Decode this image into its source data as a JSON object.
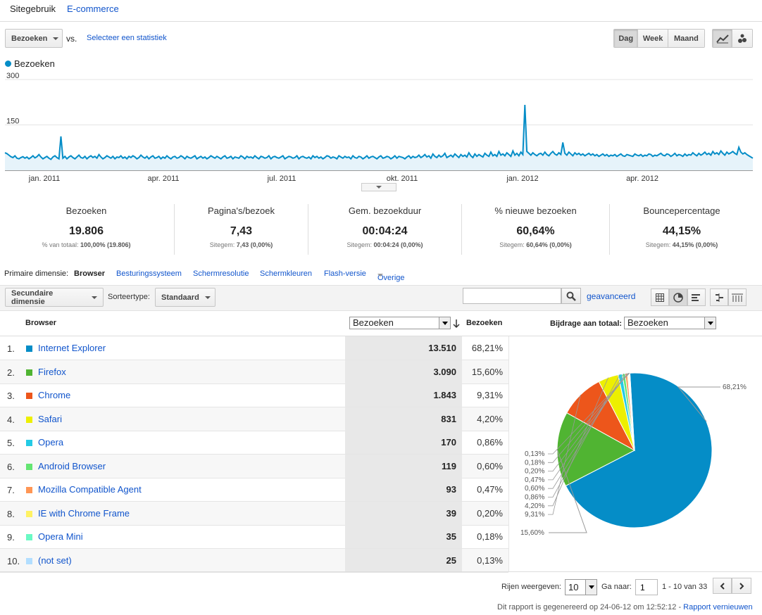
{
  "tabs": [
    "Sitegebruik",
    "E-commerce"
  ],
  "controls": {
    "metric_select": "Bezoeken",
    "vs": "vs.",
    "select_stat": "Selecteer een statistiek",
    "period_buttons": [
      "Dag",
      "Week",
      "Maand"
    ],
    "active_period": "Dag"
  },
  "chart_data": {
    "type": "line",
    "legend": "Bezoeken",
    "y_ticks": [
      "300",
      "150"
    ],
    "ylim": [
      0,
      300
    ],
    "x_tick_labels": [
      "jan. 2011",
      "apr. 2011",
      "jul. 2011",
      "okt. 2011",
      "jan. 2012",
      "apr. 2012"
    ],
    "series": [
      {
        "name": "Bezoeken",
        "color": "#058dc7",
        "values": [
          58,
          55,
          50,
          45,
          42,
          48,
          40,
          38,
          42,
          45,
          40,
          44,
          38,
          42,
          48,
          41,
          45,
          52,
          44,
          38,
          42,
          46,
          40,
          36,
          44,
          48,
          42,
          38,
          112,
          40,
          46,
          38,
          44,
          48,
          42,
          38,
          44,
          50,
          42,
          40,
          46,
          38,
          44,
          48,
          42,
          46,
          40,
          52,
          44,
          38,
          42,
          48,
          44,
          40,
          46,
          38,
          44,
          42,
          48,
          40,
          44,
          38,
          46,
          42,
          48,
          44,
          38,
          42,
          50,
          44,
          40,
          46,
          38,
          44,
          48,
          40,
          42,
          46,
          38,
          44,
          40,
          48,
          42,
          38,
          44,
          46,
          40,
          42,
          48,
          44,
          38,
          46,
          42,
          40,
          44,
          48,
          38,
          42,
          46,
          40,
          44,
          38,
          42,
          48,
          44,
          40,
          46,
          42,
          38,
          44,
          48,
          40,
          42,
          46,
          38,
          44,
          42,
          40,
          48,
          44,
          38,
          46,
          42,
          44,
          40,
          48,
          42,
          38,
          46,
          44,
          40,
          42,
          48,
          38,
          44,
          46,
          42,
          40,
          44,
          48,
          38,
          42,
          46,
          44,
          40,
          42,
          48,
          38,
          44,
          46,
          42,
          40,
          44,
          38,
          48,
          42,
          46,
          40,
          44,
          38,
          42,
          48,
          46,
          40,
          44,
          42,
          38,
          48,
          44,
          40,
          46,
          42,
          44,
          38,
          48,
          42,
          40,
          46,
          44,
          38,
          42,
          48,
          40,
          44,
          46,
          42,
          38,
          44,
          48,
          40,
          42,
          46,
          44,
          38,
          42,
          48,
          40,
          46,
          44,
          42,
          38,
          44,
          48,
          40,
          46,
          42,
          44,
          50,
          42,
          46,
          52,
          44,
          48,
          40,
          54,
          46,
          42,
          50,
          44,
          48,
          56,
          42,
          46,
          50,
          44,
          54,
          48,
          42,
          52,
          46,
          50,
          44,
          58,
          48,
          42,
          54,
          46,
          52,
          48,
          44,
          56,
          50,
          46,
          60,
          48,
          52,
          46,
          62,
          50,
          54,
          48,
          58,
          52,
          46,
          64,
          50,
          56,
          48,
          60,
          52,
          216,
          62,
          56,
          50,
          58,
          52,
          48,
          54,
          56,
          50,
          60,
          52,
          48,
          56,
          62,
          54,
          50,
          58,
          52,
          92,
          56,
          50,
          60,
          54,
          48,
          58,
          52,
          56,
          50,
          54,
          48,
          52,
          56,
          50,
          54,
          48,
          52,
          46,
          50,
          54,
          48,
          52,
          46,
          50,
          48,
          52,
          46,
          50,
          54,
          48,
          46,
          52,
          50,
          48,
          46,
          54,
          50,
          48,
          52,
          46,
          50,
          48,
          54,
          52,
          46,
          50,
          48,
          52,
          56,
          50,
          48,
          54,
          52,
          46,
          50,
          56,
          48,
          52,
          50,
          46,
          54,
          48,
          52,
          50,
          58,
          52,
          48,
          56,
          50,
          54,
          60,
          52,
          56,
          50,
          62,
          54,
          58,
          52,
          64,
          56,
          50,
          60,
          54,
          58,
          62,
          56,
          52,
          76,
          60,
          54,
          58,
          52,
          48,
          44,
          40
        ]
      }
    ]
  },
  "summary": [
    {
      "label": "Bezoeken",
      "value": "19.806",
      "sub_prefix": "% van totaal: ",
      "sub_value": "100,00% (19.806)"
    },
    {
      "label": "Pagina's/bezoek",
      "value": "7,43",
      "sub_prefix": "Sitegem: ",
      "sub_value": "7,43 (0,00%)"
    },
    {
      "label": "Gem. bezoekduur",
      "value": "00:04:24",
      "sub_prefix": "Sitegem: ",
      "sub_value": "00:04:24 (0,00%)"
    },
    {
      "label": "% nieuwe bezoeken",
      "value": "60,64%",
      "sub_prefix": "Sitegem: ",
      "sub_value": "60,64% (0,00%)"
    },
    {
      "label": "Bouncepercentage",
      "value": "44,15%",
      "sub_prefix": "Sitegem: ",
      "sub_value": "44,15% (0,00%)"
    }
  ],
  "dimensions": {
    "label": "Primaire dimensie:",
    "active": "Browser",
    "others": [
      "Besturingssysteem",
      "Schermresolutie",
      "Schermkleuren",
      "Flash-versie",
      "Overige"
    ]
  },
  "toolbar": {
    "secondary": "Secundaire dimensie",
    "sort_label": "Sorteertype:",
    "sort_value": "Standaard",
    "search_placeholder": "",
    "advanced": "geavanceerd"
  },
  "table": {
    "col_browser": "Browser",
    "col_metric_select": "Bezoeken",
    "col_metric": "Bezoeken",
    "contribution_label": "Bijdrage aan totaal:",
    "contribution_select": "Bezoeken",
    "rows": [
      {
        "n": "1.",
        "name": "Internet Explorer",
        "value": "13.510",
        "pct": "68,21%",
        "color": "#058dc7"
      },
      {
        "n": "2.",
        "name": "Firefox",
        "value": "3.090",
        "pct": "15,60%",
        "color": "#50b432"
      },
      {
        "n": "3.",
        "name": "Chrome",
        "value": "1.843",
        "pct": "9,31%",
        "color": "#ed561b"
      },
      {
        "n": "4.",
        "name": "Safari",
        "value": "831",
        "pct": "4,20%",
        "color": "#edef00"
      },
      {
        "n": "5.",
        "name": "Opera",
        "value": "170",
        "pct": "0,86%",
        "color": "#24cbe5"
      },
      {
        "n": "6.",
        "name": "Android Browser",
        "value": "119",
        "pct": "0,60%",
        "color": "#64e572"
      },
      {
        "n": "7.",
        "name": "Mozilla Compatible Agent",
        "value": "93",
        "pct": "0,47%",
        "color": "#ff9655"
      },
      {
        "n": "8.",
        "name": "IE with Chrome Frame",
        "value": "39",
        "pct": "0,20%",
        "color": "#fff263"
      },
      {
        "n": "9.",
        "name": "Opera Mini",
        "value": "35",
        "pct": "0,18%",
        "color": "#6af9c4"
      },
      {
        "n": "10.",
        "name": "(not set)",
        "value": "25",
        "pct": "0,13%",
        "color": "#b2deff"
      }
    ]
  },
  "pie": {
    "values": [
      68.21,
      15.6,
      9.31,
      4.2,
      0.86,
      0.6,
      0.47,
      0.2,
      0.18,
      0.13
    ],
    "labels": [
      "68,21%",
      "15,60%",
      "9,31%",
      "4,20%",
      "0,86%",
      "0,60%",
      "0,47%",
      "0,20%",
      "0,18%",
      "0,13%"
    ]
  },
  "pagination": {
    "rows_label": "Rijen weergeven:",
    "rows_value": "10",
    "goto_label": "Ga naar:",
    "goto_value": "1",
    "range": "1 - 10 van 33"
  },
  "report_note": "Dit rapport is gegenereerd op 24-06-12 om 12:52:12 - ",
  "refresh_link": "Rapport vernieuwen"
}
